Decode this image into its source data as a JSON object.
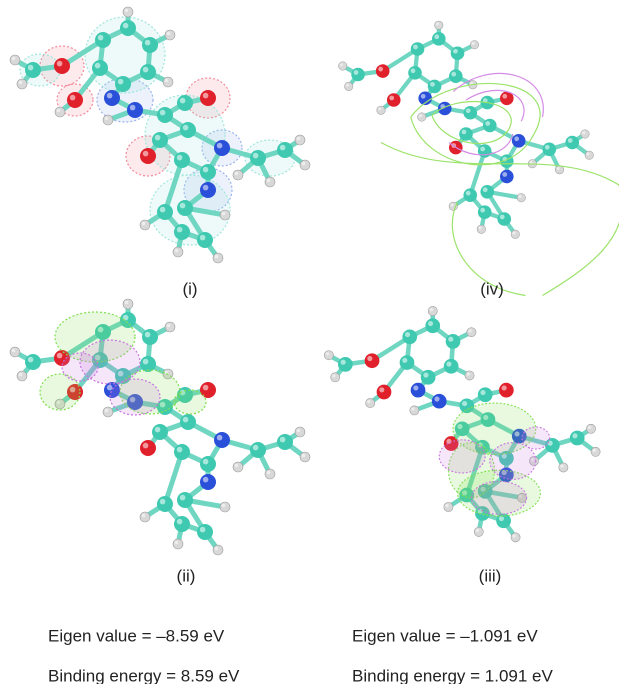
{
  "panels": [
    {
      "label": "(i)"
    },
    {
      "label": "(iv)"
    },
    {
      "label": "(ii)"
    },
    {
      "label": "(iii)"
    }
  ],
  "captions": [
    {
      "eigen": "Eigen value = –8.59 eV",
      "binding": "Binding energy = 8.59 eV"
    },
    {
      "eigen": "Eigen value = –1.091 eV",
      "binding": "Binding energy = 1.091 eV"
    }
  ]
}
